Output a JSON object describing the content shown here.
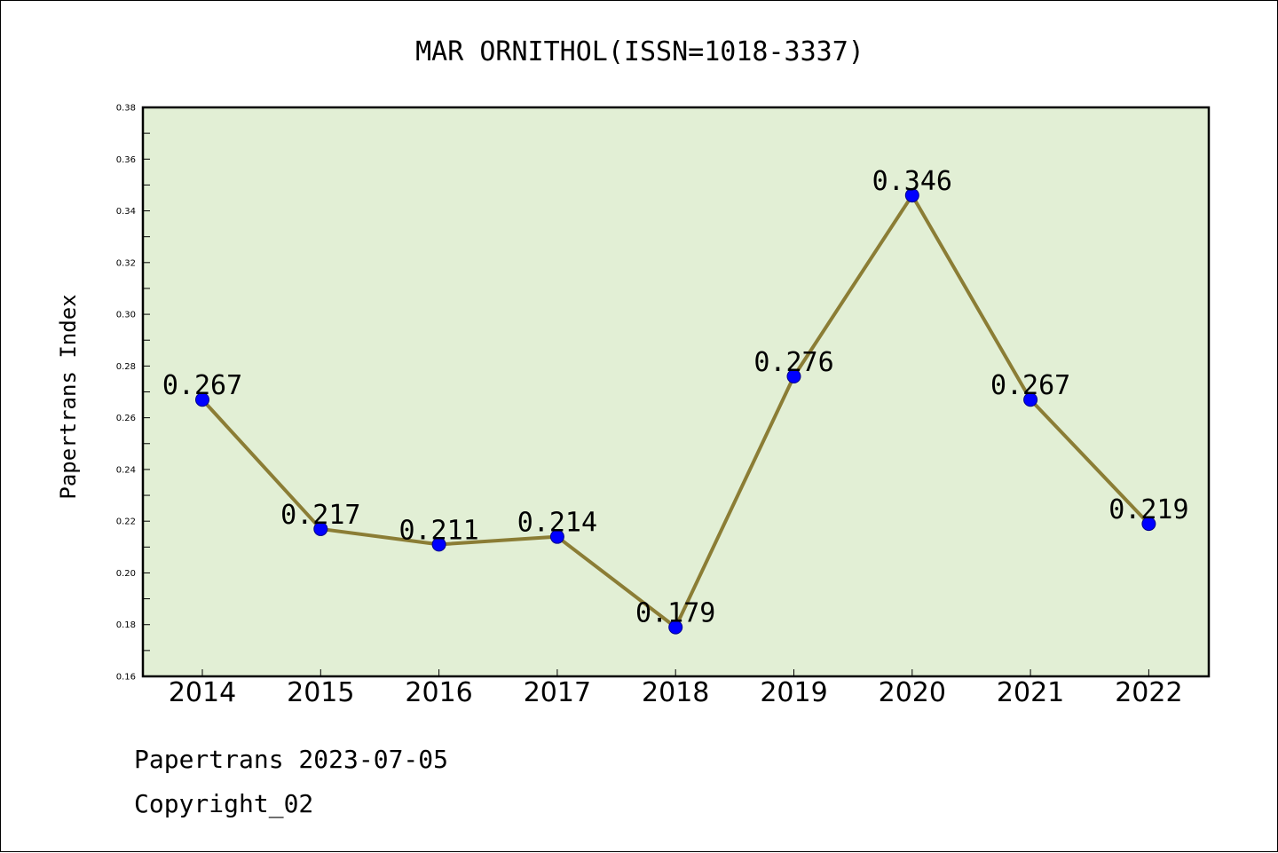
{
  "chart_data": {
    "type": "line",
    "title": "MAR ORNITHOL(ISSN=1018-3337)",
    "xlabel": "",
    "ylabel": "Papertrans Index",
    "categories": [
      "2014",
      "2015",
      "2016",
      "2017",
      "2018",
      "2019",
      "2020",
      "2021",
      "2022"
    ],
    "values": [
      0.267,
      0.217,
      0.211,
      0.214,
      0.179,
      0.276,
      0.346,
      0.267,
      0.219
    ],
    "data_labels": [
      "0.267",
      "0.217",
      "0.211",
      "0.214",
      "0.179",
      "0.276",
      "0.346",
      "0.267",
      "0.219"
    ],
    "ylim": [
      0.16,
      0.38
    ],
    "yticks": [
      "0.16",
      "0.18",
      "0.20",
      "0.22",
      "0.24",
      "0.26",
      "0.28",
      "0.30",
      "0.32",
      "0.34",
      "0.36",
      "0.38"
    ],
    "grid": false,
    "colors": {
      "plot_background": "#e2efd5",
      "line": "#8b7d35",
      "marker": "#0000ff"
    }
  },
  "footer": {
    "line1": "Papertrans 2023-07-05",
    "line2": "Copyright_02"
  }
}
